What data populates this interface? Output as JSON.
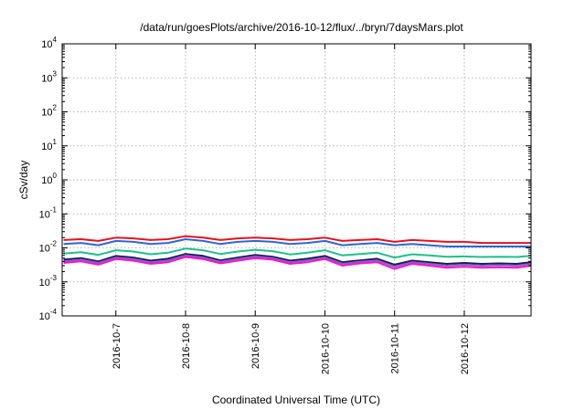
{
  "chart_data": {
    "type": "line",
    "title": "/data/run/goesPlots/archive/2016-10-12/flux/../bryn/7daysMars.plot",
    "xlabel": "Coordinated Universal Time (UTC)",
    "ylabel": "cSv/day",
    "yscale": "log",
    "ylim": [
      0.0001,
      10000
    ],
    "xlim": [
      "2016-10-06T05:30",
      "2016-10-12T23:00"
    ],
    "y_ticks": [
      {
        "base": "10",
        "exp": "-4",
        "value": 0.0001
      },
      {
        "base": "10",
        "exp": "-3",
        "value": 0.001
      },
      {
        "base": "10",
        "exp": "-2",
        "value": 0.01
      },
      {
        "base": "10",
        "exp": "-1",
        "value": 0.1
      },
      {
        "base": "10",
        "exp": "0",
        "value": 1
      },
      {
        "base": "10",
        "exp": "1",
        "value": 10
      },
      {
        "base": "10",
        "exp": "2",
        "value": 100
      },
      {
        "base": "10",
        "exp": "3",
        "value": 1000
      },
      {
        "base": "10",
        "exp": "4",
        "value": 10000
      }
    ],
    "x_ticks": [
      "2016-10-7",
      "2016-10-8",
      "2016-10-9",
      "2016-10-10",
      "2016-10-11",
      "2016-10-12"
    ],
    "x_tick_dates": [
      "2016-10-07T00:00",
      "2016-10-08T00:00",
      "2016-10-09T00:00",
      "2016-10-10T00:00",
      "2016-10-11T00:00",
      "2016-10-12T00:00"
    ],
    "grid": true,
    "x": [
      "2016-10-06T06:00",
      "2016-10-06T12:00",
      "2016-10-06T18:00",
      "2016-10-07T00:00",
      "2016-10-07T06:00",
      "2016-10-07T12:00",
      "2016-10-07T18:00",
      "2016-10-08T00:00",
      "2016-10-08T06:00",
      "2016-10-08T12:00",
      "2016-10-08T18:00",
      "2016-10-09T00:00",
      "2016-10-09T06:00",
      "2016-10-09T12:00",
      "2016-10-09T18:00",
      "2016-10-10T00:00",
      "2016-10-10T06:00",
      "2016-10-10T12:00",
      "2016-10-10T18:00",
      "2016-10-11T00:00",
      "2016-10-11T06:00",
      "2016-10-11T12:00",
      "2016-10-11T18:00",
      "2016-10-12T00:00",
      "2016-10-12T06:00",
      "2016-10-12T12:00",
      "2016-10-12T18:00",
      "2016-10-12T23:00"
    ],
    "series": [
      {
        "color": "#e8101a",
        "values": [
          0.017,
          0.018,
          0.016,
          0.02,
          0.019,
          0.017,
          0.018,
          0.022,
          0.02,
          0.017,
          0.019,
          0.02,
          0.019,
          0.017,
          0.018,
          0.02,
          0.016,
          0.017,
          0.018,
          0.015,
          0.017,
          0.016,
          0.015,
          0.015,
          0.014,
          0.014,
          0.014,
          0.014
        ]
      },
      {
        "color": "#2a66d8",
        "values": [
          0.013,
          0.014,
          0.012,
          0.016,
          0.015,
          0.013,
          0.014,
          0.018,
          0.016,
          0.013,
          0.015,
          0.016,
          0.015,
          0.013,
          0.014,
          0.016,
          0.012,
          0.013,
          0.014,
          0.012,
          0.013,
          0.012,
          0.011,
          0.011,
          0.011,
          0.011,
          0.011,
          0.011
        ]
      },
      {
        "color": "#1ec08a",
        "values": [
          0.0068,
          0.0075,
          0.0062,
          0.0085,
          0.0078,
          0.0065,
          0.0072,
          0.0095,
          0.0085,
          0.0066,
          0.0078,
          0.0088,
          0.008,
          0.0064,
          0.0072,
          0.0085,
          0.006,
          0.0066,
          0.0072,
          0.0052,
          0.0065,
          0.006,
          0.0055,
          0.0056,
          0.0054,
          0.0055,
          0.0054,
          0.0058
        ]
      },
      {
        "color": "#12204a",
        "values": [
          0.0045,
          0.005,
          0.004,
          0.0058,
          0.0052,
          0.0042,
          0.0048,
          0.0066,
          0.0058,
          0.0043,
          0.0052,
          0.0062,
          0.0055,
          0.0042,
          0.0048,
          0.0058,
          0.0038,
          0.0043,
          0.0048,
          0.0032,
          0.0042,
          0.0038,
          0.0034,
          0.0036,
          0.0034,
          0.0035,
          0.0034,
          0.0038
        ]
      },
      {
        "color": "#8a5ac8",
        "values": [
          0.004,
          0.0045,
          0.0036,
          0.0052,
          0.0047,
          0.0038,
          0.0043,
          0.006,
          0.0052,
          0.0039,
          0.0047,
          0.0056,
          0.005,
          0.0038,
          0.0043,
          0.0052,
          0.0034,
          0.0039,
          0.0043,
          0.0028,
          0.0038,
          0.0034,
          0.003,
          0.0032,
          0.003,
          0.0031,
          0.003,
          0.0034
        ]
      },
      {
        "color": "#ff10d0",
        "values": [
          0.0036,
          0.004,
          0.0032,
          0.0047,
          0.0042,
          0.0034,
          0.0038,
          0.0054,
          0.0047,
          0.0035,
          0.0042,
          0.005,
          0.0045,
          0.0034,
          0.0038,
          0.0047,
          0.003,
          0.0035,
          0.0038,
          0.0024,
          0.0034,
          0.003,
          0.0026,
          0.0028,
          0.0026,
          0.0027,
          0.0026,
          0.003
        ]
      }
    ]
  }
}
